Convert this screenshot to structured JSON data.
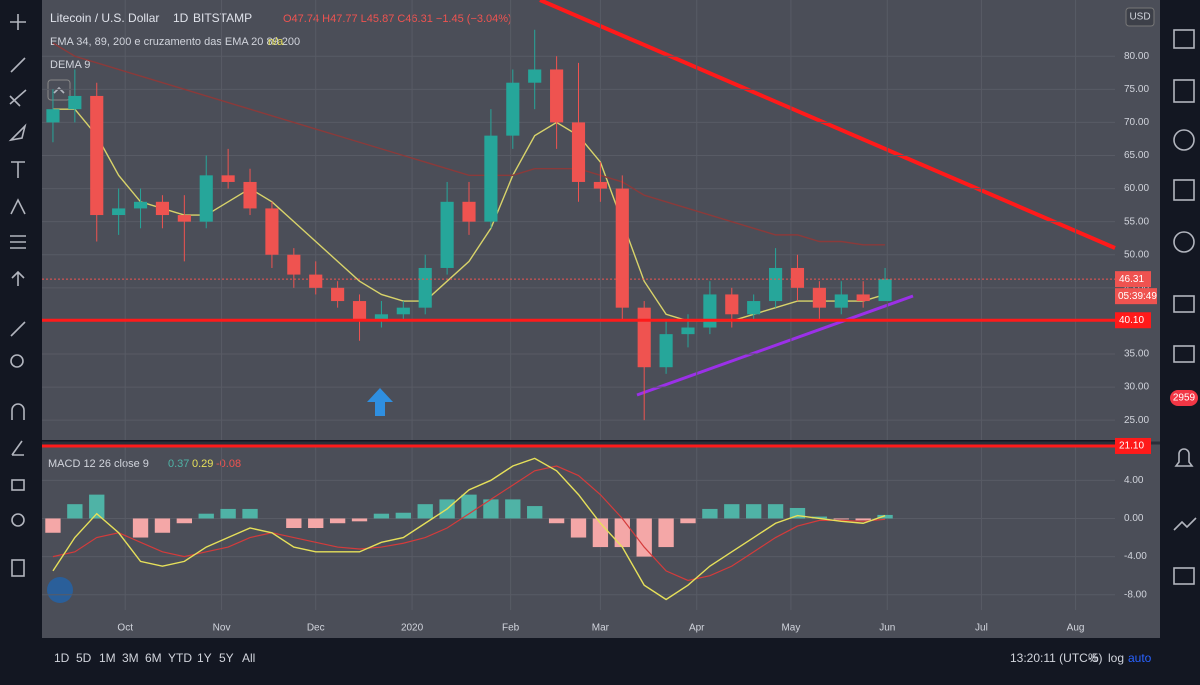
{
  "header": {
    "symbol": "Litecoin / U.S. Dollar",
    "interval": "1D",
    "exchange": "BITSTAMP",
    "ohlc": "O47.74 H47.77 L45.87 C46.31 −1.45 (−3.04%)",
    "ema_study": "EMA 34, 89, 200 e cruzamento das EMA 20 89 200",
    "ema_value": "n/a",
    "dema_study": "DEMA 9",
    "currency": "USD"
  },
  "chart_data": {
    "type": "candlestick",
    "xlim": [
      -0.5,
      48.5
    ],
    "xticks": [
      {
        "value": 3.3,
        "label": "Oct"
      },
      {
        "value": 7.7,
        "label": "Nov"
      },
      {
        "value": 12.0,
        "label": "Dec"
      },
      {
        "value": 16.4,
        "label": "2020"
      },
      {
        "value": 20.9,
        "label": "Feb"
      },
      {
        "value": 25.0,
        "label": "Mar"
      },
      {
        "value": 29.4,
        "label": "Apr"
      },
      {
        "value": 33.7,
        "label": "May"
      },
      {
        "value": 38.1,
        "label": "Jun"
      },
      {
        "value": 42.4,
        "label": "Jul"
      },
      {
        "value": 46.7,
        "label": "Aug"
      }
    ],
    "ylim": [
      22,
      88.5
    ],
    "yticks": [
      {
        "value": 25,
        "label": "25.00"
      },
      {
        "value": 30,
        "label": "30.00"
      },
      {
        "value": 35,
        "label": "35.00"
      },
      {
        "value": 40,
        "label": "40.00"
      },
      {
        "value": 45,
        "label": "45.00"
      },
      {
        "value": 50,
        "label": "50.00"
      },
      {
        "value": 55,
        "label": "55.00"
      },
      {
        "value": 60,
        "label": "60.00"
      },
      {
        "value": 65,
        "label": "65.00"
      },
      {
        "value": 70,
        "label": "70.00"
      },
      {
        "value": 75,
        "label": "75.00"
      },
      {
        "value": 80,
        "label": "80.00"
      }
    ],
    "grid": true,
    "up_color": "#26a69a",
    "down_color": "#ef5350",
    "candles": [
      {
        "open": 70,
        "high": 75,
        "low": 67,
        "close": 72
      },
      {
        "open": 72,
        "high": 78,
        "low": 70,
        "close": 74
      },
      {
        "open": 74,
        "high": 76,
        "low": 52,
        "close": 56
      },
      {
        "open": 56,
        "high": 60,
        "low": 53,
        "close": 57
      },
      {
        "open": 57,
        "high": 60,
        "low": 54,
        "close": 58
      },
      {
        "open": 58,
        "high": 59,
        "low": 54,
        "close": 56
      },
      {
        "open": 56,
        "high": 59,
        "low": 49,
        "close": 55
      },
      {
        "open": 55,
        "high": 65,
        "low": 54,
        "close": 62
      },
      {
        "open": 62,
        "high": 66,
        "low": 60,
        "close": 61
      },
      {
        "open": 61,
        "high": 63,
        "low": 56,
        "close": 57
      },
      {
        "open": 57,
        "high": 58,
        "low": 48,
        "close": 50
      },
      {
        "open": 50,
        "high": 51,
        "low": 45,
        "close": 47
      },
      {
        "open": 47,
        "high": 49,
        "low": 44,
        "close": 45
      },
      {
        "open": 45,
        "high": 46,
        "low": 42,
        "close": 43
      },
      {
        "open": 43,
        "high": 44,
        "low": 37,
        "close": 40
      },
      {
        "open": 40,
        "high": 43,
        "low": 39,
        "close": 41
      },
      {
        "open": 41,
        "high": 43,
        "low": 40,
        "close": 42
      },
      {
        "open": 42,
        "high": 50,
        "low": 41,
        "close": 48
      },
      {
        "open": 48,
        "high": 61,
        "low": 47,
        "close": 58
      },
      {
        "open": 58,
        "high": 61,
        "low": 53,
        "close": 55
      },
      {
        "open": 55,
        "high": 72,
        "low": 54,
        "close": 68
      },
      {
        "open": 68,
        "high": 78,
        "low": 66,
        "close": 76
      },
      {
        "open": 76,
        "high": 84,
        "low": 72,
        "close": 78
      },
      {
        "open": 78,
        "high": 80,
        "low": 66,
        "close": 70
      },
      {
        "open": 70,
        "high": 79,
        "low": 58,
        "close": 61
      },
      {
        "open": 61,
        "high": 64,
        "low": 58,
        "close": 60
      },
      {
        "open": 60,
        "high": 62,
        "low": 40,
        "close": 42
      },
      {
        "open": 42,
        "high": 43,
        "low": 25,
        "close": 33
      },
      {
        "open": 33,
        "high": 40,
        "low": 32,
        "close": 38
      },
      {
        "open": 38,
        "high": 41,
        "low": 36,
        "close": 39
      },
      {
        "open": 39,
        "high": 46,
        "low": 38,
        "close": 44
      },
      {
        "open": 44,
        "high": 45,
        "low": 39,
        "close": 41
      },
      {
        "open": 41,
        "high": 44,
        "low": 40,
        "close": 43
      },
      {
        "open": 43,
        "high": 51,
        "low": 42,
        "close": 48
      },
      {
        "open": 48,
        "high": 50,
        "low": 43,
        "close": 45
      },
      {
        "open": 45,
        "high": 46,
        "low": 40,
        "close": 42
      },
      {
        "open": 42,
        "high": 46,
        "low": 41,
        "close": 44
      },
      {
        "open": 44,
        "high": 46,
        "low": 42,
        "close": 43
      },
      {
        "open": 43,
        "high": 48,
        "low": 43,
        "close": 46.31
      }
    ],
    "lines": [
      {
        "color": "#d8d36a",
        "values": [
          72,
          72,
          68,
          62,
          58,
          57,
          56,
          56,
          58,
          60,
          58,
          55,
          52,
          49,
          46,
          44,
          43,
          43,
          46,
          49,
          54,
          62,
          68,
          70,
          68,
          64,
          55,
          46,
          41,
          40,
          40,
          40,
          41,
          42,
          43,
          43,
          43,
          43,
          44
        ]
      },
      {
        "color": "#8b3a3a",
        "values": [
          82,
          80,
          79,
          78,
          77,
          76,
          75,
          74,
          73,
          72,
          71,
          70,
          69,
          68,
          67,
          66,
          65,
          64,
          63,
          62,
          62,
          62,
          63,
          63,
          63,
          62,
          61,
          59,
          58,
          57,
          56,
          55,
          54,
          53,
          53,
          52,
          52,
          51.5,
          51.5
        ]
      }
    ],
    "price_lines": [
      {
        "value": 46.31,
        "label": "46.31",
        "color": "#ef5350"
      },
      {
        "value": 40.1,
        "label": "40.10",
        "color": "#ff1a1a"
      },
      {
        "value": 21.1,
        "label": "21.10",
        "color": "#ff1a1a"
      }
    ],
    "countdown": "05:39:49",
    "macd": {
      "title": "MACD 12 26 close 9",
      "ylim": [
        -9.6,
        7.6
      ],
      "yticks": [
        {
          "value": 4,
          "label": "4.00"
        },
        {
          "value": 0,
          "label": "0.00"
        },
        {
          "value": -4,
          "label": "-4.00"
        },
        {
          "value": -8,
          "label": "-8.00"
        }
      ],
      "histogram": [
        -1.5,
        1.5,
        2.5,
        0,
        -2,
        -1.5,
        -0.5,
        0.5,
        1,
        1,
        0,
        -1,
        -1,
        -0.5,
        -0.3,
        0.5,
        0.6,
        1.5,
        2,
        2.5,
        2,
        2,
        1.3,
        -0.5,
        -2,
        -3,
        -3,
        -4,
        -3,
        -0.5,
        1,
        1.5,
        1.5,
        1.5,
        1.1,
        0.2,
        -0.1,
        -0.2,
        0.37
      ],
      "hist_up_color": "#4fb3a6",
      "hist_down_color": "#f4a7a7",
      "macd_line": {
        "color": "#e6e05a",
        "values": [
          -5.5,
          -2,
          0.5,
          -1.5,
          -4.5,
          -5,
          -4.5,
          -3,
          -2,
          -1,
          -1.5,
          -3,
          -3.5,
          -3.5,
          -3.5,
          -2.5,
          -2,
          -0.5,
          1,
          3,
          4,
          5.5,
          6.3,
          5,
          2.5,
          -0.5,
          -3,
          -7,
          -8.5,
          -7,
          -5,
          -3.5,
          -2,
          -0.5,
          0.3,
          0,
          -0.3,
          -0.5,
          0.29
        ]
      },
      "signal_line": {
        "color": "#d43b3b",
        "values": [
          -4,
          -3.5,
          -2,
          -1.5,
          -2.5,
          -3.5,
          -4,
          -3.5,
          -3,
          -2,
          -1.5,
          -2,
          -2.5,
          -3,
          -3.2,
          -3,
          -2.6,
          -2,
          -1,
          0.5,
          2,
          3.5,
          5,
          5.5,
          4.5,
          2.5,
          0,
          -3,
          -5.5,
          -6.5,
          -6,
          -5,
          -3.5,
          -2,
          -0.8,
          -0.2,
          -0.2,
          -0.3,
          -0.08
        ]
      }
    }
  },
  "bottom_bar": {
    "ranges": [
      "1D",
      "5D",
      "1M",
      "3M",
      "6M",
      "YTD",
      "1Y",
      "5Y",
      "All"
    ],
    "clock": "13:20:11 (UTC-5)",
    "options": [
      "%",
      "log",
      "auto"
    ]
  },
  "toolbar": {
    "badge": "2959"
  }
}
